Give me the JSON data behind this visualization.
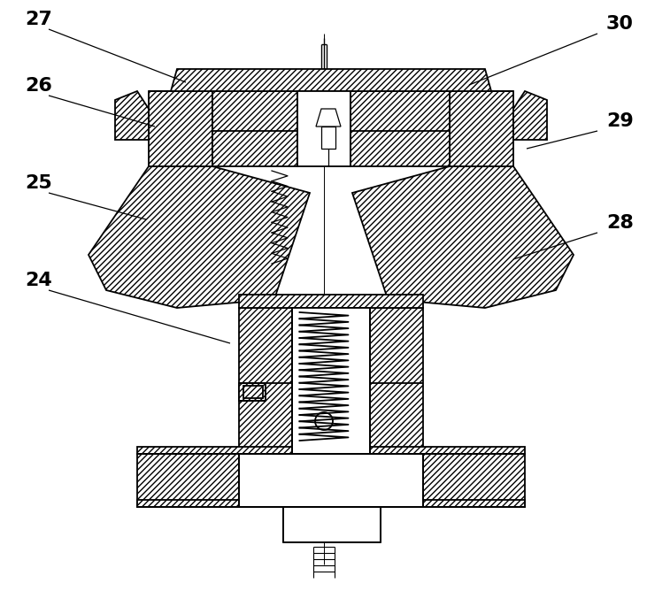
{
  "bg_color": "#ffffff",
  "line_color": "#000000",
  "label_fontsize": 16,
  "fig_width": 7.31,
  "fig_height": 6.68,
  "dpi": 100,
  "hatch": "/////"
}
